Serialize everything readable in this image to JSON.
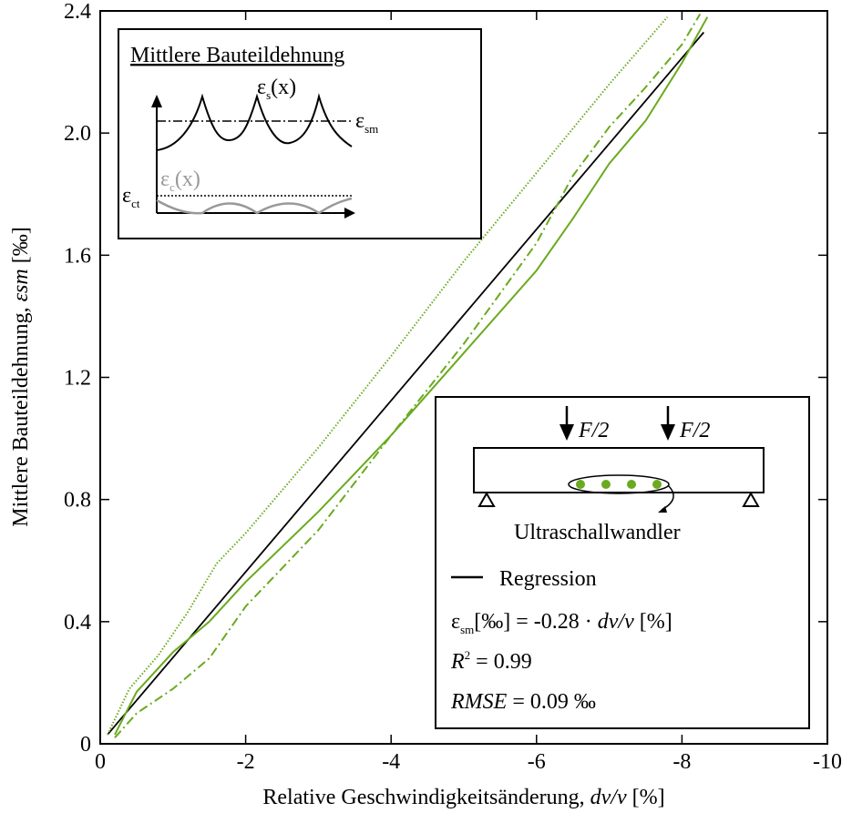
{
  "chart_data": {
    "type": "line",
    "xlabel": "Relative Geschwindigkeitsänderung,",
    "xlabel_var": "dv/v",
    "xlabel_unit": "[%]",
    "ylabel": "Mittlere Bauteildehnung,",
    "ylabel_var": "εsm",
    "ylabel_unit": "[‰]",
    "xlim": [
      0,
      -10
    ],
    "ylim": [
      0,
      2.4
    ],
    "x_ticks": [
      0,
      -2,
      -4,
      -6,
      -8,
      -10
    ],
    "x_tick_labels": [
      "0",
      "-2",
      "-4",
      "-6",
      "-8",
      "-10"
    ],
    "y_ticks": [
      0,
      0.4,
      0.8,
      1.2,
      1.6,
      2.0,
      2.4
    ],
    "y_tick_labels": [
      "0",
      "0.4",
      "0.8",
      "1.2",
      "1.6",
      "2.0",
      "2.4"
    ],
    "grid": false,
    "colors": {
      "green": "#6aaa1e",
      "black": "#000000",
      "gray": "#999999"
    },
    "series": [
      {
        "name": "Regression",
        "style": "solid",
        "color": "#000000",
        "x": [
          -0.1,
          -8.3
        ],
        "y": [
          0.03,
          2.33
        ]
      },
      {
        "style": "dotted",
        "color": "#6aaa1e",
        "x": [
          -0.1,
          -0.4,
          -0.8,
          -1.2,
          -1.6,
          -2.0,
          -3.0,
          -4.0,
          -5.0,
          -6.0,
          -7.0,
          -7.8
        ],
        "y": [
          0.03,
          0.18,
          0.29,
          0.43,
          0.59,
          0.69,
          0.97,
          1.27,
          1.58,
          1.87,
          2.16,
          2.38
        ]
      },
      {
        "style": "solid",
        "color": "#6aaa1e",
        "x": [
          -0.2,
          -0.5,
          -1.0,
          -1.5,
          -2.0,
          -3.0,
          -4.0,
          -5.0,
          -6.0,
          -6.5,
          -7.0,
          -7.5,
          -8.0,
          -8.35
        ],
        "y": [
          0.03,
          0.17,
          0.3,
          0.4,
          0.53,
          0.76,
          1.01,
          1.28,
          1.55,
          1.72,
          1.9,
          2.04,
          2.23,
          2.38
        ]
      },
      {
        "style": "dashdot",
        "color": "#6aaa1e",
        "x": [
          -0.2,
          -0.5,
          -1.0,
          -1.5,
          -2.0,
          -3.0,
          -4.0,
          -5.0,
          -6.0,
          -6.5,
          -7.0,
          -7.5,
          -8.0,
          -8.25
        ],
        "y": [
          0.02,
          0.1,
          0.18,
          0.28,
          0.45,
          0.7,
          1.01,
          1.31,
          1.64,
          1.86,
          2.02,
          2.15,
          2.29,
          2.39
        ]
      }
    ],
    "inset_strain": {
      "title": "Mittlere Bauteildehnung",
      "label_es": "εs(x)",
      "label_esm": "εsm",
      "label_ec": "εc(x)",
      "label_ect": "εct"
    },
    "inset_beam": {
      "load_label": "F/2",
      "transducer_label": "Ultraschallwandler",
      "legend_label": "Regression",
      "eq_var": "εsm",
      "eq_rest": "[‰] = -0.28 · ",
      "eq_dvv": "dv/v",
      "eq_unit": " [%]",
      "r2_var": "R",
      "r2_sup": "2",
      "r2_value": " = 0.99",
      "rmse_var": "RMSE",
      "rmse_value": " = 0.09 ‰"
    }
  }
}
